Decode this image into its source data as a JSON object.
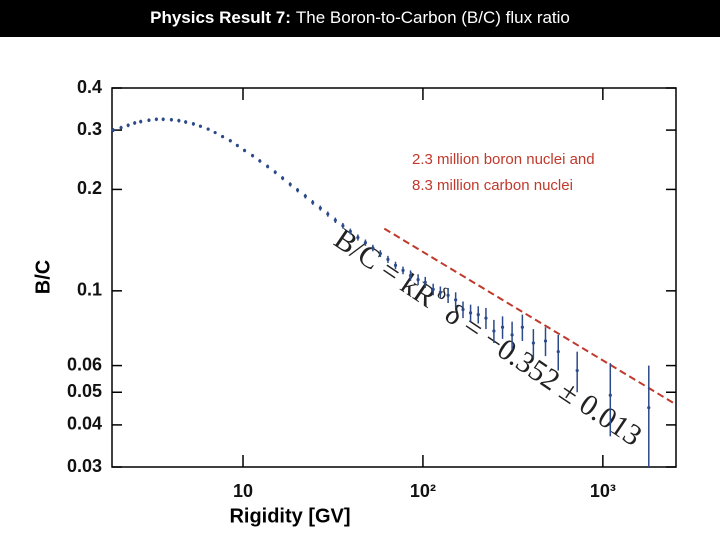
{
  "header": {
    "label": "Physics Result 7:",
    "text": "The Boron-to-Carbon (B/C) flux ratio"
  },
  "chart_data": {
    "type": "scatter",
    "xlabel": "Rigidity [GV]",
    "ylabel": "B/C",
    "xlog": true,
    "ylog": true,
    "xlim": [
      1.87,
      2550
    ],
    "ylim": [
      0.03,
      0.4
    ],
    "xticks": [
      10,
      {
        "value": 100,
        "label": "10²"
      },
      {
        "value": 1000,
        "label": "10³"
      }
    ],
    "yticks": [
      0.03,
      0.04,
      0.05,
      0.06,
      0.1,
      0.2,
      0.3,
      0.4
    ],
    "series": [
      {
        "color": "#2b4a8a",
        "x": [
          1.9,
          2.1,
          2.3,
          2.5,
          2.7,
          3.0,
          3.3,
          3.6,
          4.0,
          4.4,
          4.8,
          5.3,
          5.8,
          6.4,
          7.0,
          7.7,
          8.5,
          9.3,
          10.2,
          11.3,
          12.4,
          13.7,
          15.1,
          16.6,
          18.3,
          20.1,
          22.2,
          24.4,
          26.9,
          29.6,
          32.6,
          35.9,
          39.5,
          43.5,
          47.9,
          52.7,
          58.0,
          63.9,
          70.4,
          77.5,
          85.3,
          94,
          103,
          114,
          125,
          138,
          152,
          167,
          184,
          203,
          224,
          248,
          277,
          313,
          357,
          411,
          480,
          565,
          720,
          1100,
          1800
        ],
        "values": [
          0.3,
          0.305,
          0.31,
          0.315,
          0.318,
          0.321,
          0.323,
          0.323,
          0.322,
          0.32,
          0.317,
          0.313,
          0.308,
          0.302,
          0.295,
          0.287,
          0.279,
          0.27,
          0.261,
          0.252,
          0.243,
          0.234,
          0.225,
          0.216,
          0.207,
          0.199,
          0.191,
          0.183,
          0.176,
          0.169,
          0.162,
          0.156,
          0.15,
          0.144,
          0.139,
          0.134,
          0.129,
          0.124,
          0.119,
          0.115,
          0.111,
          0.108,
          0.106,
          0.101,
          0.099,
          0.097,
          0.094,
          0.088,
          0.086,
          0.085,
          0.083,
          0.076,
          0.078,
          0.074,
          0.078,
          0.07,
          0.071,
          0.066,
          0.058,
          0.049,
          0.045
        ],
        "errors": [
          0.004,
          0.004,
          0.004,
          0.004,
          0.004,
          0.004,
          0.004,
          0.004,
          0.004,
          0.004,
          0.004,
          0.004,
          0.003,
          0.003,
          0.003,
          0.003,
          0.003,
          0.003,
          0.003,
          0.003,
          0.003,
          0.003,
          0.003,
          0.003,
          0.003,
          0.003,
          0.003,
          0.003,
          0.003,
          0.003,
          0.003,
          0.003,
          0.003,
          0.003,
          0.003,
          0.003,
          0.003,
          0.003,
          0.003,
          0.003,
          0.004,
          0.004,
          0.004,
          0.004,
          0.004,
          0.005,
          0.005,
          0.005,
          0.005,
          0.005,
          0.006,
          0.006,
          0.006,
          0.007,
          0.007,
          0.007,
          0.007,
          0.008,
          0.008,
          0.012,
          0.015
        ]
      }
    ],
    "fit": {
      "color": "#c0392b",
      "x": [
        61,
        2550
      ],
      "values": [
        0.153,
        0.046
      ]
    },
    "annotations": [
      "2.3 million boron nuclei and",
      "8.3 million carbon nuclei",
      "B/C = kR",
      "δ",
      "δ = −0.352 ± 0.013"
    ]
  }
}
